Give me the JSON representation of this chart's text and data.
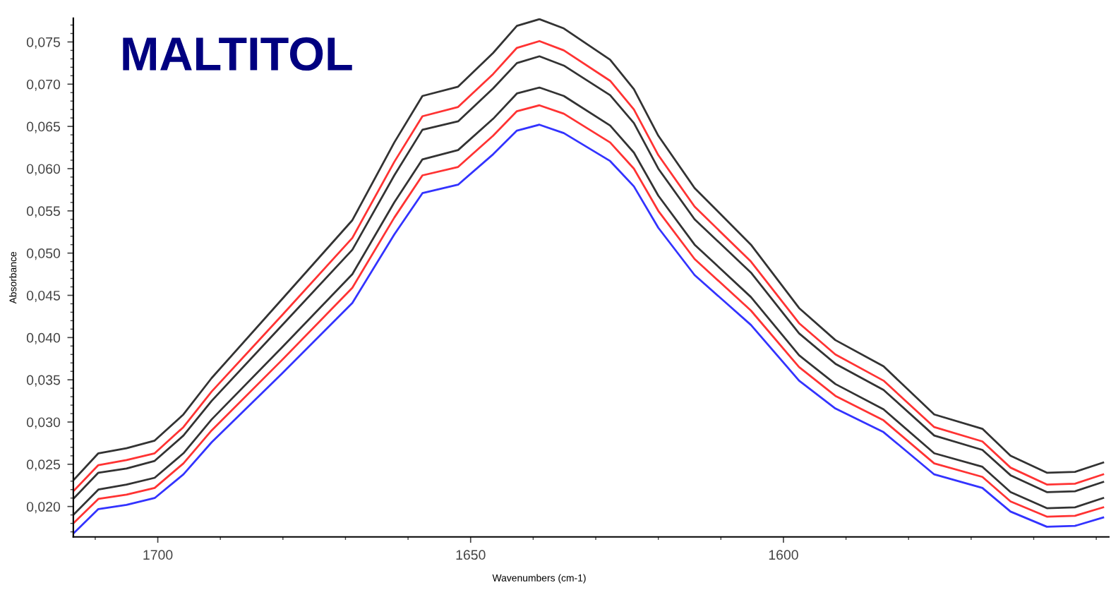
{
  "chart_data": {
    "type": "line",
    "title": "MALTITOL",
    "xlabel": "Wavenumbers (cm-1)",
    "ylabel": "Absorbance",
    "x": [
      1713.5,
      1709.5,
      1705.0,
      1700.5,
      1695.9,
      1691.4,
      1680.2,
      1668.9,
      1662.2,
      1657.7,
      1652.0,
      1646.4,
      1642.6,
      1639.0,
      1635.1,
      1627.7,
      1623.9,
      1620.0,
      1614.2,
      1605.2,
      1597.5,
      1591.7,
      1584.0,
      1575.9,
      1568.2,
      1563.7,
      1557.9,
      1553.4,
      1548.9
    ],
    "series": [
      {
        "color": "#333333",
        "values": [
          0.0231,
          0.0263,
          0.0269,
          0.0278,
          0.0309,
          0.0352,
          0.0445,
          0.0539,
          0.0631,
          0.0686,
          0.0697,
          0.0737,
          0.0769,
          0.0777,
          0.0766,
          0.0729,
          0.0694,
          0.0639,
          0.0577,
          0.051,
          0.0435,
          0.0397,
          0.0366,
          0.0309,
          0.0292,
          0.026,
          0.024,
          0.0241,
          0.0252
        ]
      },
      {
        "color": "#ff3333",
        "values": [
          0.0218,
          0.0249,
          0.0255,
          0.0263,
          0.0294,
          0.0336,
          0.0426,
          0.0518,
          0.0608,
          0.0662,
          0.0673,
          0.0712,
          0.0743,
          0.0751,
          0.074,
          0.0704,
          0.067,
          0.0616,
          0.0555,
          0.049,
          0.0417,
          0.038,
          0.0349,
          0.0294,
          0.0277,
          0.0246,
          0.0226,
          0.0227,
          0.0238
        ]
      },
      {
        "color": "#333333",
        "values": [
          0.0209,
          0.024,
          0.0245,
          0.0254,
          0.0284,
          0.0325,
          0.0414,
          0.0504,
          0.0592,
          0.0646,
          0.0656,
          0.0695,
          0.0725,
          0.0733,
          0.0722,
          0.0687,
          0.0654,
          0.06,
          0.054,
          0.0477,
          0.0405,
          0.0369,
          0.0338,
          0.0284,
          0.0267,
          0.0237,
          0.0217,
          0.0218,
          0.0229
        ]
      },
      {
        "color": "#333333",
        "values": [
          0.019,
          0.022,
          0.0226,
          0.0234,
          0.0263,
          0.0303,
          0.0388,
          0.0475,
          0.056,
          0.0611,
          0.0622,
          0.0659,
          0.0689,
          0.0696,
          0.0686,
          0.0651,
          0.0619,
          0.0568,
          0.051,
          0.0448,
          0.0379,
          0.0345,
          0.0315,
          0.0263,
          0.0247,
          0.0217,
          0.0198,
          0.0199,
          0.021
        ]
      },
      {
        "color": "#ff3333",
        "values": [
          0.018,
          0.0209,
          0.0214,
          0.0222,
          0.0251,
          0.029,
          0.0373,
          0.0459,
          0.0542,
          0.0592,
          0.0602,
          0.0639,
          0.0668,
          0.0675,
          0.0665,
          0.0631,
          0.06,
          0.055,
          0.0493,
          0.0432,
          0.0365,
          0.0331,
          0.0302,
          0.0251,
          0.0235,
          0.0206,
          0.0188,
          0.0189,
          0.0199
        ]
      },
      {
        "color": "#3333ff",
        "values": [
          0.0168,
          0.0197,
          0.0202,
          0.021,
          0.0238,
          0.0276,
          0.0357,
          0.0441,
          0.0522,
          0.0571,
          0.0581,
          0.0617,
          0.0645,
          0.0652,
          0.0642,
          0.0609,
          0.0579,
          0.053,
          0.0474,
          0.0415,
          0.0349,
          0.0316,
          0.0288,
          0.0238,
          0.0222,
          0.0194,
          0.0176,
          0.0177,
          0.0187
        ]
      }
    ],
    "xlim": [
      1713.5,
      1548.0
    ],
    "xticks": [
      1700,
      1650,
      1600
    ],
    "ylim": [
      0.0164,
      0.0778
    ],
    "yticks": [
      {
        "value": 0.02,
        "label": "0,020"
      },
      {
        "value": 0.025,
        "label": "0,025"
      },
      {
        "value": 0.03,
        "label": "0,030"
      },
      {
        "value": 0.035,
        "label": "0,035"
      },
      {
        "value": 0.04,
        "label": "0,040"
      },
      {
        "value": 0.045,
        "label": "0,045"
      },
      {
        "value": 0.05,
        "label": "0,050"
      },
      {
        "value": 0.055,
        "label": "0,055"
      },
      {
        "value": 0.06,
        "label": "0,060"
      },
      {
        "value": 0.065,
        "label": "0,065"
      },
      {
        "value": 0.07,
        "label": "0,070"
      },
      {
        "value": 0.075,
        "label": "0,075"
      }
    ],
    "grid": false,
    "legend": false,
    "marker": "none",
    "line_style": "solid"
  }
}
